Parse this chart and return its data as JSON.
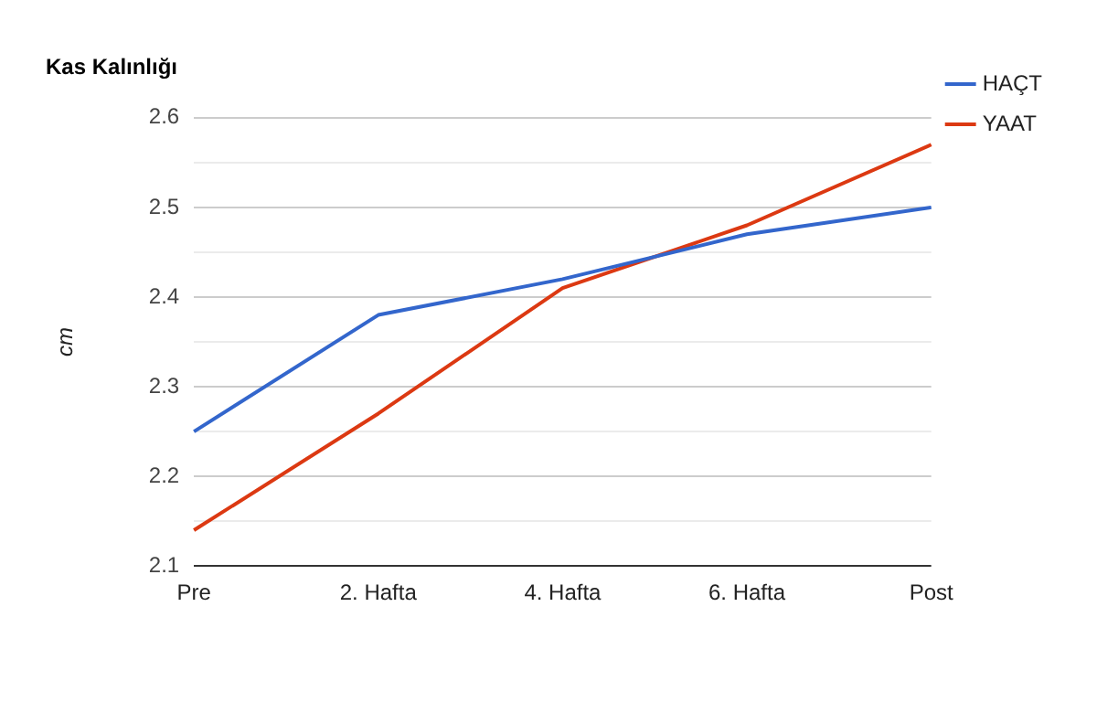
{
  "chart_data": {
    "type": "line",
    "title": "Kas Kalınlığı",
    "ylabel": "cm",
    "categories": [
      "Pre",
      "2. Hafta",
      "4. Hafta",
      "6. Hafta",
      "Post"
    ],
    "series": [
      {
        "name": "HAÇT",
        "color": "#3366cc",
        "values": [
          2.25,
          2.38,
          2.42,
          2.47,
          2.5
        ]
      },
      {
        "name": "YAAT",
        "color": "#dc3912",
        "values": [
          2.14,
          2.27,
          2.41,
          2.48,
          2.57
        ]
      }
    ],
    "ylim": [
      2.1,
      2.6
    ],
    "yticks": [
      2.1,
      {
        "value": 2.15,
        "label": null
      },
      2.2,
      {
        "value": 2.25,
        "label": null
      },
      2.3,
      {
        "value": 2.35,
        "label": null
      },
      2.4,
      {
        "value": 2.45,
        "label": null
      },
      2.5,
      {
        "value": 2.55,
        "label": null
      },
      2.6
    ],
    "grid": "y",
    "legend": "top right",
    "marker": "none",
    "line_style": "solid"
  }
}
